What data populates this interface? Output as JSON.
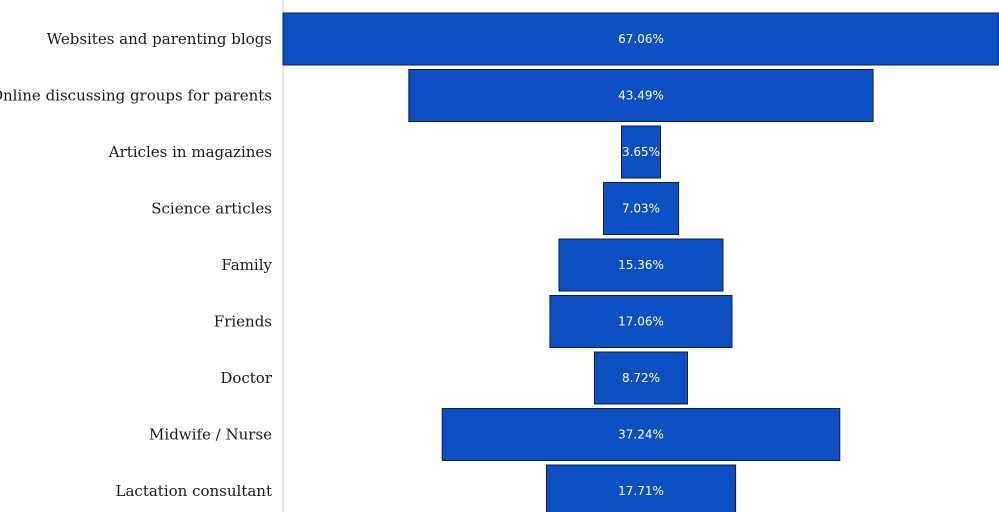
{
  "chart_data": {
    "type": "bar",
    "orientation": "horizontal-funnel",
    "categories": [
      "Websites and parenting blogs",
      "Online discussing groups for parents",
      "Articles in magazines",
      "Science articles",
      "Family",
      "Friends",
      "Doctor",
      "Midwife / Nurse",
      "Lactation consultant"
    ],
    "values": [
      67.06,
      43.49,
      3.65,
      7.03,
      15.36,
      17.06,
      8.72,
      37.24,
      17.71
    ],
    "value_labels": [
      "67.06%",
      "43.49%",
      "3.65%",
      "7.03%",
      "15.36%",
      "17.06%",
      "8.72%",
      "37.24%",
      "17.71%"
    ],
    "bar_color": "#0b4fc2",
    "title": "",
    "xlabel": "",
    "ylabel": "",
    "grid": false,
    "legend": "none"
  }
}
